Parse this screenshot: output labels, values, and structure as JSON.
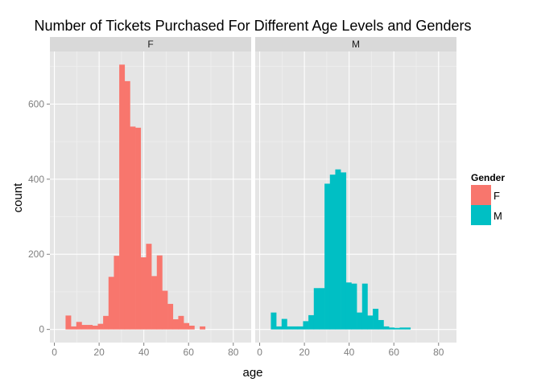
{
  "chart_data": {
    "type": "bar",
    "title": "Number of Tickets Purchased For Different Age Levels and Genders",
    "xlabel": "age",
    "ylabel": "count",
    "xlim": [
      -2,
      88
    ],
    "ylim": [
      -35,
      740
    ],
    "x_ticks": [
      0,
      20,
      40,
      60,
      80
    ],
    "y_ticks": [
      0,
      200,
      400,
      600
    ],
    "bin_width": 2.4,
    "panels": [
      {
        "strip": "F",
        "color": "#F8766D",
        "bins": [
          {
            "x0": 5.0,
            "count": 37
          },
          {
            "x0": 7.4,
            "count": 8
          },
          {
            "x0": 9.8,
            "count": 20
          },
          {
            "x0": 12.2,
            "count": 12
          },
          {
            "x0": 14.6,
            "count": 12
          },
          {
            "x0": 17.0,
            "count": 10
          },
          {
            "x0": 19.4,
            "count": 15
          },
          {
            "x0": 21.8,
            "count": 36
          },
          {
            "x0": 24.2,
            "count": 140
          },
          {
            "x0": 26.6,
            "count": 196
          },
          {
            "x0": 29.0,
            "count": 705
          },
          {
            "x0": 31.4,
            "count": 661
          },
          {
            "x0": 33.8,
            "count": 540
          },
          {
            "x0": 36.2,
            "count": 537
          },
          {
            "x0": 38.6,
            "count": 192
          },
          {
            "x0": 41.0,
            "count": 228
          },
          {
            "x0": 43.4,
            "count": 142
          },
          {
            "x0": 45.8,
            "count": 197
          },
          {
            "x0": 48.2,
            "count": 103
          },
          {
            "x0": 50.6,
            "count": 68
          },
          {
            "x0": 53.0,
            "count": 27
          },
          {
            "x0": 55.4,
            "count": 36
          },
          {
            "x0": 57.8,
            "count": 17
          },
          {
            "x0": 60.2,
            "count": 10
          },
          {
            "x0": 62.6,
            "count": 0
          },
          {
            "x0": 65.0,
            "count": 8
          }
        ]
      },
      {
        "strip": "M",
        "color": "#00BFC4",
        "bins": [
          {
            "x0": 5.0,
            "count": 45
          },
          {
            "x0": 7.4,
            "count": 8
          },
          {
            "x0": 9.8,
            "count": 28
          },
          {
            "x0": 12.2,
            "count": 8
          },
          {
            "x0": 14.6,
            "count": 8
          },
          {
            "x0": 17.0,
            "count": 8
          },
          {
            "x0": 19.4,
            "count": 22
          },
          {
            "x0": 21.8,
            "count": 38
          },
          {
            "x0": 24.2,
            "count": 110
          },
          {
            "x0": 26.6,
            "count": 110
          },
          {
            "x0": 29.0,
            "count": 388
          },
          {
            "x0": 31.4,
            "count": 412
          },
          {
            "x0": 33.8,
            "count": 426
          },
          {
            "x0": 36.2,
            "count": 418
          },
          {
            "x0": 38.6,
            "count": 125
          },
          {
            "x0": 41.0,
            "count": 122
          },
          {
            "x0": 43.4,
            "count": 45
          },
          {
            "x0": 45.8,
            "count": 122
          },
          {
            "x0": 48.2,
            "count": 37
          },
          {
            "x0": 50.6,
            "count": 55
          },
          {
            "x0": 53.0,
            "count": 25
          },
          {
            "x0": 55.4,
            "count": 8
          },
          {
            "x0": 57.8,
            "count": 5
          },
          {
            "x0": 60.2,
            "count": 4
          },
          {
            "x0": 62.6,
            "count": 5
          },
          {
            "x0": 65.0,
            "count": 5
          }
        ]
      }
    ],
    "legend": {
      "title": "Gender",
      "placement": "right",
      "entries": [
        {
          "label": "F",
          "color": "#F8766D"
        },
        {
          "label": "M",
          "color": "#00BFC4"
        }
      ]
    },
    "grid": true
  }
}
